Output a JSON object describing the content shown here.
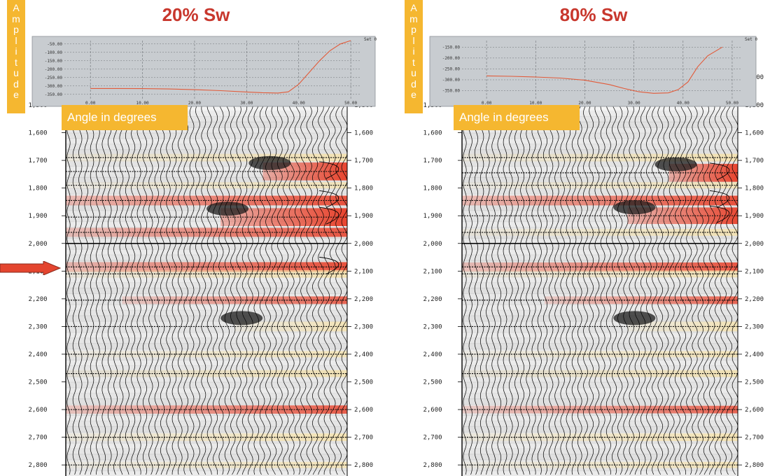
{
  "arrow_marker": {
    "target_depth": 2090
  },
  "panels": [
    {
      "title": "20% Sw",
      "amplitude_label": "Amplitude",
      "angle_label": "Angle in degrees",
      "chart_label": "Set 0",
      "colors": {
        "title": "#c8372d",
        "label_bg": "#f5b730",
        "curve": "#e25b3a",
        "red": "#e8442e",
        "yellow": "#f7e2a8"
      }
    },
    {
      "title": "80% Sw",
      "amplitude_label": "Amplitude",
      "angle_label": "Angle in degrees",
      "chart_label": "Set 0",
      "colors": {
        "title": "#c8372d",
        "label_bg": "#f5b730",
        "curve": "#e25b3a",
        "red": "#e8442e",
        "yellow": "#f7e2a8"
      }
    }
  ],
  "chart_data": [
    {
      "type": "line",
      "title": "20% Sw",
      "xlabel": "Angle in degrees",
      "ylabel": "Amplitude",
      "x_ticks": [
        "0.00",
        "10.00",
        "20.00",
        "30.00",
        "40.00",
        "50.00"
      ],
      "y_ticks": [
        "-50.00",
        "-100.00",
        "-150.00",
        "-200.00",
        "-250.00",
        "-300.00",
        "-350.00"
      ],
      "xlim": [
        -5,
        52
      ],
      "ylim": [
        -380,
        -30
      ],
      "x": [
        0,
        5,
        10,
        15,
        20,
        25,
        30,
        33,
        36,
        38,
        40,
        42,
        44,
        46,
        48,
        50
      ],
      "y": [
        -315,
        -315,
        -316,
        -318,
        -322,
        -328,
        -336,
        -340,
        -342,
        -335,
        -290,
        -220,
        -150,
        -90,
        -50,
        -30
      ]
    },
    {
      "type": "line",
      "title": "80% Sw",
      "xlabel": "Angle in degrees",
      "ylabel": "Amplitude",
      "x_ticks": [
        "0.00",
        "10.00",
        "20.00",
        "30.00",
        "40.00",
        "50.00"
      ],
      "y_ticks": [
        "-150.00",
        "-200.00",
        "-250.00",
        "-300.00",
        "-350.00"
      ],
      "xlim": [
        -5,
        52
      ],
      "ylim": [
        -390,
        -120
      ],
      "x": [
        0,
        5,
        10,
        15,
        20,
        25,
        28,
        31,
        34,
        37,
        39,
        41,
        43,
        45,
        48
      ],
      "y": [
        -282,
        -284,
        -287,
        -292,
        -302,
        -322,
        -340,
        -355,
        -362,
        -360,
        -345,
        -310,
        -240,
        -190,
        -150
      ]
    },
    {
      "type": "heatmap",
      "title": "20% Sw",
      "ylabel": "depth",
      "depth_ticks": [
        "1,500",
        "1,600",
        "1,700",
        "1,800",
        "1,900",
        "2,000",
        "2,100",
        "2,200",
        "2,300",
        "2,400",
        "2,500",
        "2,600",
        "2,700",
        "2,800"
      ],
      "y_range": [
        1500,
        2840
      ],
      "right_tick_labels": [
        "1,400",
        "1,500",
        "1,600",
        "1,700",
        "1,800",
        "1,900",
        "2,000",
        "2,100",
        "2,200",
        "2,300",
        "2,400",
        "2,500",
        "2,600",
        "2,700",
        "2,800"
      ],
      "reflectors": [
        {
          "depth": 1690,
          "color": "yellow",
          "onset": 0.0,
          "strength": 0.5
        },
        {
          "depth": 1740,
          "color": "red",
          "onset": 0.7,
          "strength": 1.0
        },
        {
          "depth": 1790,
          "color": "yellow",
          "onset": 0.0,
          "strength": 0.3
        },
        {
          "depth": 1845,
          "color": "red",
          "onset": 0.0,
          "strength": 0.8
        },
        {
          "depth": 1905,
          "color": "red",
          "onset": 0.55,
          "strength": 1.0
        },
        {
          "depth": 1960,
          "color": "red",
          "onset": 0.0,
          "strength": 0.7
        },
        {
          "depth": 2085,
          "color": "red",
          "onset": 0.0,
          "strength": 0.8
        },
        {
          "depth": 2110,
          "color": "yellow",
          "onset": 0.0,
          "strength": 0.5
        },
        {
          "depth": 2205,
          "color": "red",
          "onset": 0.2,
          "strength": 0.5
        },
        {
          "depth": 2300,
          "color": "yellow",
          "onset": 0.6,
          "strength": 0.4
        },
        {
          "depth": 2400,
          "color": "yellow",
          "onset": 0.0,
          "strength": 0.3
        },
        {
          "depth": 2470,
          "color": "yellow",
          "onset": 0.0,
          "strength": 0.4
        },
        {
          "depth": 2600,
          "color": "red",
          "onset": 0.0,
          "strength": 0.6
        },
        {
          "depth": 2700,
          "color": "yellow",
          "onset": 0.0,
          "strength": 0.5
        },
        {
          "depth": 2800,
          "color": "yellow",
          "onset": 0.0,
          "strength": 0.3
        }
      ]
    },
    {
      "type": "heatmap",
      "title": "80% Sw",
      "ylabel": "depth",
      "depth_ticks": [
        "1,500",
        "1,600",
        "1,700",
        "1,800",
        "1,900",
        "2,000",
        "2,100",
        "2,200",
        "2,300",
        "2,400",
        "2,500",
        "2,600",
        "2,700",
        "2,800"
      ],
      "y_range": [
        1500,
        2840
      ],
      "right_tick_labels": [
        "1,400",
        "1,500",
        "1,600",
        "1,700",
        "1,800",
        "1,900",
        "2,000",
        "2,100",
        "2,200",
        "2,300",
        "2,400",
        "2,500",
        "2,600",
        "2,700",
        "2,800"
      ],
      "reflectors": [
        {
          "depth": 1690,
          "color": "yellow",
          "onset": 0.0,
          "strength": 0.5
        },
        {
          "depth": 1745,
          "color": "red",
          "onset": 0.75,
          "strength": 1.0
        },
        {
          "depth": 1790,
          "color": "yellow",
          "onset": 0.0,
          "strength": 0.3
        },
        {
          "depth": 1845,
          "color": "red",
          "onset": 0.0,
          "strength": 0.8
        },
        {
          "depth": 1900,
          "color": "red",
          "onset": 0.6,
          "strength": 0.9
        },
        {
          "depth": 1960,
          "color": "yellow",
          "onset": 0.0,
          "strength": 0.4
        },
        {
          "depth": 2085,
          "color": "red",
          "onset": 0.0,
          "strength": 0.7
        },
        {
          "depth": 2110,
          "color": "yellow",
          "onset": 0.0,
          "strength": 0.4
        },
        {
          "depth": 2205,
          "color": "red",
          "onset": 0.3,
          "strength": 0.5
        },
        {
          "depth": 2300,
          "color": "yellow",
          "onset": 0.6,
          "strength": 0.4
        },
        {
          "depth": 2400,
          "color": "yellow",
          "onset": 0.0,
          "strength": 0.3
        },
        {
          "depth": 2470,
          "color": "yellow",
          "onset": 0.0,
          "strength": 0.4
        },
        {
          "depth": 2600,
          "color": "red",
          "onset": 0.0,
          "strength": 0.5
        },
        {
          "depth": 2700,
          "color": "yellow",
          "onset": 0.0,
          "strength": 0.5
        },
        {
          "depth": 2800,
          "color": "yellow",
          "onset": 0.0,
          "strength": 0.3
        }
      ]
    }
  ]
}
